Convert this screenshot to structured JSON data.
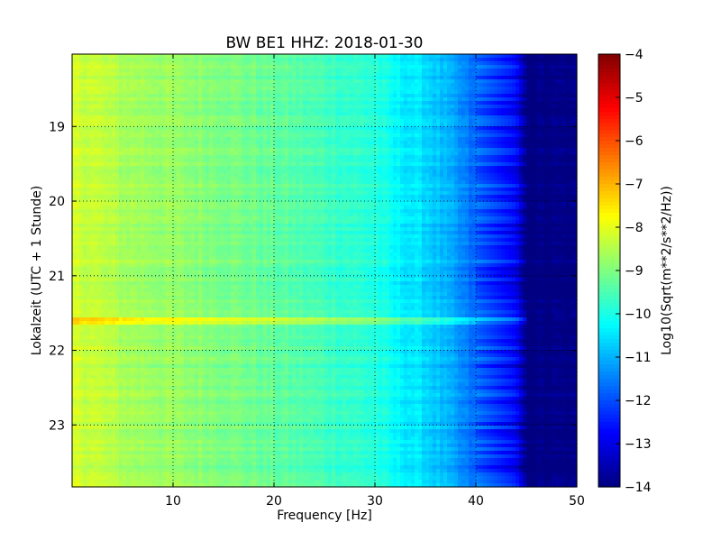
{
  "chart_data": {
    "type": "heatmap",
    "title": "BW BE1 HHZ: 2018-01-30",
    "xlabel": "Frequency [Hz]",
    "ylabel": "Lokalzeit (UTC + 1 Stunde)",
    "colorbar_label": "Log10(Sqrt(m**2/s**2/Hz))",
    "colormap": "jet",
    "xlim": [
      0,
      50
    ],
    "ylim": [
      18.03,
      23.83
    ],
    "y_inverted": true,
    "grid": true,
    "x_ticks": [
      10,
      20,
      30,
      40,
      50
    ],
    "x_tick_labels": [
      "10",
      "20",
      "30",
      "40",
      "50"
    ],
    "y_ticks": [
      19,
      20,
      21,
      22,
      23
    ],
    "y_tick_labels": [
      "19",
      "20",
      "21",
      "22",
      "23"
    ],
    "color_range": [
      -14,
      -4
    ],
    "colorbar_ticks": [
      -4,
      -5,
      -6,
      -7,
      -8,
      -9,
      -10,
      -11,
      -12,
      -13,
      -14
    ],
    "colorbar_tick_labels": [
      "−4",
      "−5",
      "−6",
      "−7",
      "−8",
      "−9",
      "−10",
      "−11",
      "−12",
      "−13",
      "−14"
    ],
    "spectrum_profile": {
      "frequency_hz": [
        0,
        2,
        5,
        10,
        15,
        20,
        25,
        30,
        32,
        35,
        37,
        40,
        42,
        44,
        45,
        50
      ],
      "log10_psd": [
        -8.2,
        -8.3,
        -8.6,
        -8.8,
        -9.0,
        -9.3,
        -9.6,
        -9.9,
        -10.3,
        -10.6,
        -11.0,
        -11.8,
        -12.3,
        -12.8,
        -14.0,
        -14.0
      ]
    },
    "highlighted_event": {
      "time_hour": 21.6,
      "max_frequency_hz": 45,
      "log10_psd_increase": 1.0
    },
    "colors": {
      "axes_border": "#000000",
      "grid": "#000000",
      "background": "#ffffff"
    }
  }
}
